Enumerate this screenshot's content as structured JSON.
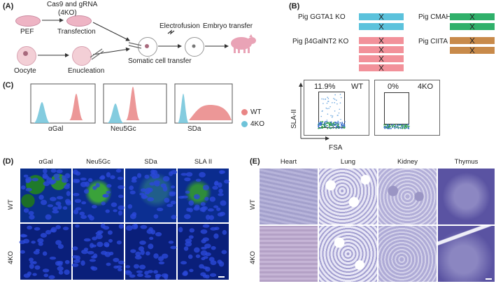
{
  "panels": {
    "A": {
      "label": "(A)",
      "top_text": "Cas9 and gRNA",
      "top_text2": "(4KO)",
      "pef": "PEF",
      "transfection": "Transfection",
      "oocyte": "Oocyte",
      "enucleation": "Enucleation",
      "electrofusion": "Electrofusion",
      "embryo_transfer": "Embryo transfer",
      "somatic": "Somatic cell transfer"
    },
    "B": {
      "label": "(B)",
      "ggta1": "Pig GGTA1 KO",
      "ggta1_count": "×2",
      "cmah": "Pig CMAH KO",
      "cmah_count": "×2",
      "b4galnt2": "Pig β4GalNT2 KO",
      "b4galnt2_count": "×4",
      "ciita": "Pig CIITA KO",
      "ciita_count": "×2",
      "colors": {
        "ggta1": "#5bc2dc",
        "cmah": "#2fb06a",
        "b4galnt2": "#f2919a",
        "ciita": "#c88a4a"
      }
    },
    "C": {
      "label": "(C)",
      "hist": [
        "αGal",
        "Neu5Gc",
        "SDa"
      ],
      "legend": [
        {
          "name": "WT",
          "color": "#e98585"
        },
        {
          "name": "4KO",
          "color": "#6ec3d9"
        }
      ],
      "scatter": {
        "wt_label": "WT",
        "wt_pct": "11.9%",
        "ko_label": "4KO",
        "ko_pct": "0%",
        "ylabel": "SLA-II",
        "xlabel": "FSA"
      }
    },
    "D": {
      "label": "(D)",
      "cols": [
        "αGal",
        "Neu5Gc",
        "SDa",
        "SLA II"
      ],
      "rows": [
        "WT",
        "4KO"
      ]
    },
    "E": {
      "label": "(E)",
      "cols": [
        "Heart",
        "Lung",
        "Kidney",
        "Thymus"
      ],
      "rows": [
        "WT",
        "4KO"
      ]
    }
  }
}
